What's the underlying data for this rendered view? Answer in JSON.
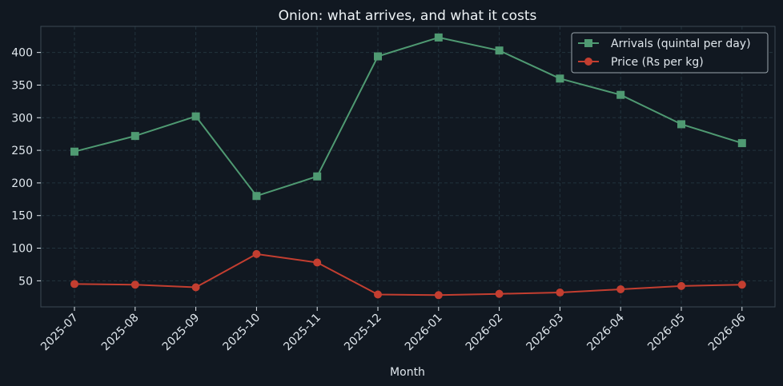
{
  "chart_data": {
    "type": "line",
    "title": "Onion: what arrives, and what it costs",
    "xlabel": "Month",
    "ylabel": "",
    "categories": [
      "2025-07",
      "2025-08",
      "2025-09",
      "2025-10",
      "2025-11",
      "2025-12",
      "2026-01",
      "2026-02",
      "2026-03",
      "2026-04",
      "2026-05",
      "2026-06"
    ],
    "ylim": [
      10,
      440
    ],
    "yticks": [
      50,
      100,
      150,
      200,
      250,
      300,
      350,
      400
    ],
    "grid": true,
    "legend_position": "top-right",
    "series": [
      {
        "name": "Arrivals (quintal per day)",
        "values": [
          248,
          272,
          302,
          180,
          210,
          394,
          423,
          403,
          360,
          335,
          290,
          261
        ],
        "color": "#4f9a72",
        "marker": "square"
      },
      {
        "name": "Price (Rs per kg)",
        "values": [
          45,
          44,
          40,
          91,
          78,
          29,
          28,
          30,
          32,
          37,
          42,
          44
        ],
        "color": "#c33e30",
        "marker": "circle"
      }
    ]
  },
  "colors": {
    "background": "#111821",
    "grid": "#22333d",
    "axis": "#3a4952",
    "text": "#dfe6ec"
  }
}
